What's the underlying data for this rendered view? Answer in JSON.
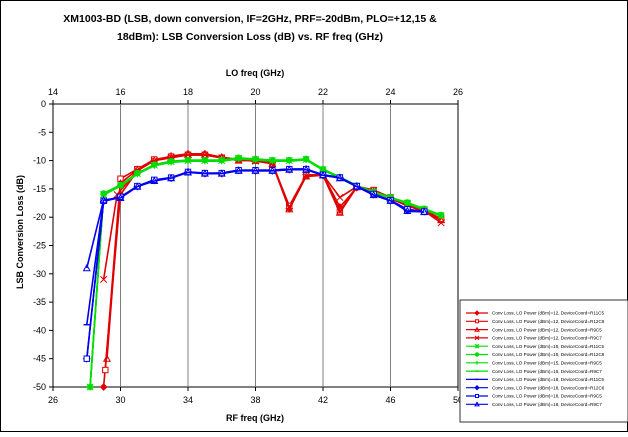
{
  "chart_data": {
    "type": "line",
    "title": "XM1003-BD (LSB, down conversion, IF=2GHz, PRF=-20dBm, PLO=+12,15 & 18dBm): LSB Conversion Loss (dB) vs. RF freq (GHz)",
    "title_lines": [
      "XM1003-BD (LSB, down conversion, IF=2GHz, PRF=-20dBm, PLO=+12,15 &",
      "18dBm): LSB Conversion Loss (dB) vs. RF freq (GHz)"
    ],
    "xlabel": "RF freq (GHz)",
    "ylabel": "LSB Conversion Loss (dB)",
    "x2label": "LO freq (GHz)",
    "xlim": [
      26,
      50
    ],
    "ylim": [
      -50,
      0
    ],
    "x2lim": [
      14,
      26
    ],
    "xticks": [
      "26",
      "30",
      "34",
      "38",
      "42",
      "46",
      "50"
    ],
    "yticks": [
      "0",
      "-5",
      "-10",
      "-15",
      "-20",
      "-25",
      "-30",
      "-35",
      "-40",
      "-45",
      "-50"
    ],
    "x2ticks": [
      "14",
      "16",
      "18",
      "20",
      "22",
      "24",
      "26"
    ],
    "grid": "vertical",
    "legend_position": "right",
    "series": [
      {
        "name": "Conv Loss, LO Power (dBm)=12, DeviceCoord=R11C5",
        "color": "#e00000",
        "marker": "diamond",
        "x": [
          29,
          30,
          31,
          32,
          33,
          34,
          35,
          36,
          37,
          38,
          39,
          40,
          41,
          42,
          43,
          44,
          45,
          46,
          47,
          48,
          49
        ],
        "y": [
          -50,
          -16,
          -11.8,
          -10,
          -9.2,
          -8.8,
          -8.8,
          -9.4,
          -9.8,
          -10,
          -10.4,
          -18.5,
          -12.5,
          -12.5,
          -18.2,
          -14.8,
          -15.5,
          -16.5,
          -17.8,
          -19,
          -20.5
        ]
      },
      {
        "name": "Conv Loss, LO Power (dBm)=12, DeviceCoord=R12C6",
        "color": "#e00000",
        "marker": "square",
        "x": [
          29.1,
          30,
          31,
          32,
          33,
          34,
          35,
          36,
          37,
          38,
          39,
          40,
          41,
          42,
          43,
          44,
          45,
          46,
          47,
          48,
          49
        ],
        "y": [
          -47,
          -13.2,
          -11.5,
          -9.8,
          -9.3,
          -9,
          -9,
          -9.5,
          -9.8,
          -10,
          -10.5,
          -18,
          -12.6,
          -12.4,
          -19,
          -14.5,
          -15.2,
          -16.5,
          -17.5,
          -18.7,
          -20.3
        ]
      },
      {
        "name": "Conv Loss, LO Power (dBm)=12, DeviceCoord=R9C5",
        "color": "#e00000",
        "marker": "triangle",
        "x": [
          29.2,
          30,
          31,
          32,
          33,
          34,
          35,
          36,
          37,
          38,
          39,
          40,
          41,
          42,
          43,
          44,
          45,
          46,
          47,
          48,
          49
        ],
        "y": [
          -45,
          -14,
          -11.6,
          -10,
          -9.5,
          -9,
          -9,
          -9.5,
          -10,
          -10,
          -10.6,
          -18.6,
          -12.8,
          -12.6,
          -19.2,
          -14.7,
          -15.4,
          -16.7,
          -18,
          -19,
          -20.5
        ]
      },
      {
        "name": "Conv Loss, LO Power (dBm)=12, DeviceCoord=R9C7",
        "color": "#e00000",
        "marker": "x",
        "x": [
          29,
          29.8,
          31,
          32,
          33,
          34,
          35,
          36,
          37,
          38,
          39,
          40,
          41,
          42,
          43,
          44,
          45,
          46,
          47,
          48,
          49
        ],
        "y": [
          -31,
          -16,
          -11.7,
          -10,
          -9.4,
          -9,
          -9,
          -9.5,
          -9.9,
          -10.1,
          -10.5,
          -18.3,
          -12.7,
          -12.5,
          -16.5,
          -14.6,
          -15.3,
          -16.6,
          -17.8,
          -18.9,
          -21
        ]
      },
      {
        "name": "Conv Loss, LO Power (dBm)=15, DeviceCoord=R11C5",
        "color": "#00dd00",
        "marker": "star",
        "x": [
          28.2,
          29,
          30,
          31,
          32,
          33,
          34,
          35,
          36,
          37,
          38,
          39,
          40,
          41,
          42,
          43,
          44,
          45,
          46,
          47,
          48,
          49
        ],
        "y": [
          -50,
          -16,
          -14.4,
          -12.3,
          -10.8,
          -10.2,
          -10,
          -10,
          -10,
          -9.6,
          -9.8,
          -10,
          -10,
          -9.8,
          -11.6,
          -13,
          -14.5,
          -15.6,
          -16.5,
          -17.5,
          -18.6,
          -19.7
        ]
      },
      {
        "name": "Conv Loss, LO Power (dBm)=15, DeviceCoord=R12C6",
        "color": "#00dd00",
        "marker": "circle",
        "x": [
          28.2,
          29,
          30,
          31,
          32,
          33,
          34,
          35,
          36,
          37,
          38,
          39,
          40,
          41,
          42,
          43,
          44,
          45,
          46,
          47,
          48,
          49
        ],
        "y": [
          -50,
          -15.8,
          -14.3,
          -12.2,
          -10.7,
          -10.1,
          -9.9,
          -9.9,
          -9.9,
          -9.5,
          -9.7,
          -9.9,
          -9.9,
          -9.7,
          -11.5,
          -12.9,
          -14.4,
          -15.5,
          -16.5,
          -17.4,
          -18.5,
          -19.6
        ]
      },
      {
        "name": "Conv Loss, LO Power (dBm)=15, DeviceCoord=R9C5",
        "color": "#00dd00",
        "marker": "plus",
        "x": [
          28.2,
          29,
          30,
          31,
          32,
          33,
          34,
          35,
          36,
          37,
          38,
          39,
          40,
          41,
          42,
          43,
          44,
          45,
          46,
          47,
          48,
          49
        ],
        "y": [
          -50,
          -16.1,
          -14.5,
          -12.4,
          -10.9,
          -10.3,
          -10.1,
          -10.1,
          -10.1,
          -9.7,
          -9.9,
          -10.1,
          -10.1,
          -9.9,
          -11.7,
          -13.1,
          -14.6,
          -15.7,
          -16.6,
          -17.6,
          -18.7,
          -19.8
        ]
      },
      {
        "name": "Conv Loss, LO Power (dBm)=15, DeviceCoord=R9C7",
        "color": "#00dd00",
        "marker": "dash",
        "x": [
          28.2,
          29,
          30,
          31,
          32,
          33,
          34,
          35,
          36,
          37,
          38,
          39,
          40,
          41,
          42,
          43,
          44,
          45,
          46,
          47,
          48,
          49
        ],
        "y": [
          -50,
          -15.9,
          -14.4,
          -12.3,
          -10.8,
          -10.2,
          -10,
          -10,
          -10,
          -9.6,
          -9.8,
          -10,
          -10,
          -9.8,
          -11.6,
          -13,
          -14.5,
          -15.6,
          -16.5,
          -17.5,
          -18.6,
          -19.7
        ]
      },
      {
        "name": "Conv Loss, LO Power (dBm)=18, DeviceCoord=R11C5",
        "color": "#0000ee",
        "marker": "dash",
        "x": [
          28,
          29,
          30,
          31,
          32,
          33,
          34,
          35,
          36,
          37,
          38,
          39,
          40,
          41,
          42,
          43,
          44,
          45,
          46,
          47,
          48
        ],
        "y": [
          -39,
          -17,
          -16.5,
          -14.5,
          -13.5,
          -13,
          -12,
          -12.3,
          -12.2,
          -11.7,
          -11.7,
          -11.7,
          -11.5,
          -11.5,
          -12.5,
          -13,
          -14.5,
          -16,
          -17,
          -19,
          -19
        ]
      },
      {
        "name": "Conv Loss, LO Power (dBm)=18, DeviceCoord=R12C6",
        "color": "#0000ee",
        "marker": "diamond",
        "x": [
          28,
          29,
          30,
          31,
          32,
          33,
          34,
          35,
          36,
          37,
          38,
          39,
          40,
          41,
          42,
          43,
          44,
          45,
          46,
          47,
          48
        ],
        "y": [
          -45,
          -17.2,
          -16.5,
          -14.6,
          -13.5,
          -13.1,
          -12,
          -12.3,
          -12.3,
          -11.7,
          -11.8,
          -11.8,
          -11.6,
          -11.5,
          -12.6,
          -13,
          -14.6,
          -16,
          -17.1,
          -18.8,
          -19
        ]
      },
      {
        "name": "Conv Loss, LO Power (dBm)=18, DeviceCoord=R9C5",
        "color": "#0000ee",
        "marker": "square",
        "x": [
          28,
          29,
          30,
          31,
          32,
          33,
          34,
          35,
          36,
          37,
          38,
          39,
          40,
          41,
          42,
          43,
          44,
          45,
          46,
          47,
          48
        ],
        "y": [
          -45,
          -17.1,
          -16.4,
          -14.5,
          -13.4,
          -13,
          -12,
          -12.2,
          -12.2,
          -11.7,
          -11.7,
          -11.7,
          -11.5,
          -11.5,
          -12.5,
          -13,
          -14.5,
          -15.9,
          -17,
          -18.6,
          -19
        ]
      },
      {
        "name": "Conv Loss, LO Power (dBm)=18, DeviceCoord=R9C7",
        "color": "#0000ee",
        "marker": "triangle",
        "x": [
          28,
          29,
          30,
          31,
          32,
          33,
          34,
          35,
          36,
          37,
          38,
          39,
          40,
          41,
          42,
          43,
          44,
          45,
          46,
          47,
          48
        ],
        "y": [
          -29,
          -17,
          -16.6,
          -14.6,
          -13.6,
          -13.1,
          -12.1,
          -12.3,
          -12.3,
          -11.8,
          -11.8,
          -11.8,
          -11.6,
          -11.6,
          -12.6,
          -13.1,
          -14.6,
          -16.1,
          -17.1,
          -18.9,
          -19.1
        ]
      }
    ]
  }
}
